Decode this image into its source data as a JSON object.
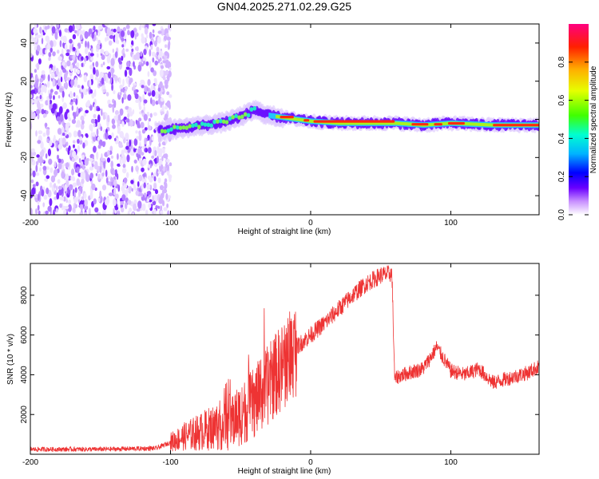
{
  "title": "GN04.2025.271.02.29.G25",
  "chart_data": [
    {
      "type": "heatmap",
      "xlabel": "Height of straight line (km)",
      "ylabel": "Frequency (Hz)",
      "xlim": [
        -200,
        163
      ],
      "ylim": [
        -50,
        50
      ],
      "xticks": [
        -200,
        -100,
        0,
        100
      ],
      "yticks": [
        -40,
        -20,
        0,
        20,
        40
      ],
      "colorbar": {
        "label": "Normalized spectral amplitude",
        "range": [
          0,
          1
        ],
        "ticks": [
          "0.0",
          "0.2",
          "0.4",
          "0.6",
          "0.8"
        ]
      },
      "noise_region_x": [
        -200,
        -108
      ],
      "signal_track": {
        "x": [
          -108,
          -95,
          -85,
          -75,
          -65,
          -55,
          -45,
          -40,
          -30,
          -20,
          -10,
          0,
          20,
          40,
          60,
          80,
          100,
          130,
          163
        ],
        "frequency_hz": [
          -6,
          -5,
          -4,
          -3,
          -2,
          0,
          3,
          5,
          2,
          1,
          0,
          -1,
          -2,
          -2,
          -2,
          -3,
          -2,
          -3,
          -3
        ]
      }
    },
    {
      "type": "line",
      "xlabel": "Height of straight line (km)",
      "ylabel": "SNR (10 * v/v)",
      "xlim": [
        -200,
        163
      ],
      "ylim": [
        0,
        9600
      ],
      "xticks": [
        -200,
        -100,
        0,
        100
      ],
      "yticks": [
        2000,
        4000,
        6000,
        8000
      ],
      "color": "#ee3333",
      "series": [
        {
          "x": [
            -200,
            -150,
            -110,
            -100,
            -90,
            -80,
            -70,
            -60,
            -50,
            -40,
            -30,
            -25,
            -20,
            -15,
            -10,
            -5,
            0,
            10,
            20,
            30,
            40,
            50,
            58,
            60,
            62,
            70,
            80,
            85,
            90,
            100,
            110,
            120,
            130,
            140,
            150,
            155,
            160,
            163
          ],
          "values": [
            250,
            250,
            300,
            600,
            900,
            1100,
            1350,
            1550,
            2000,
            2600,
            3500,
            4000,
            4400,
            4900,
            5400,
            5700,
            6000,
            6600,
            7300,
            8000,
            8600,
            9000,
            9100,
            3700,
            3900,
            4100,
            4300,
            4800,
            5400,
            4200,
            4000,
            4300,
            3600,
            3800,
            4000,
            4100,
            4300,
            4400
          ]
        }
      ]
    }
  ]
}
